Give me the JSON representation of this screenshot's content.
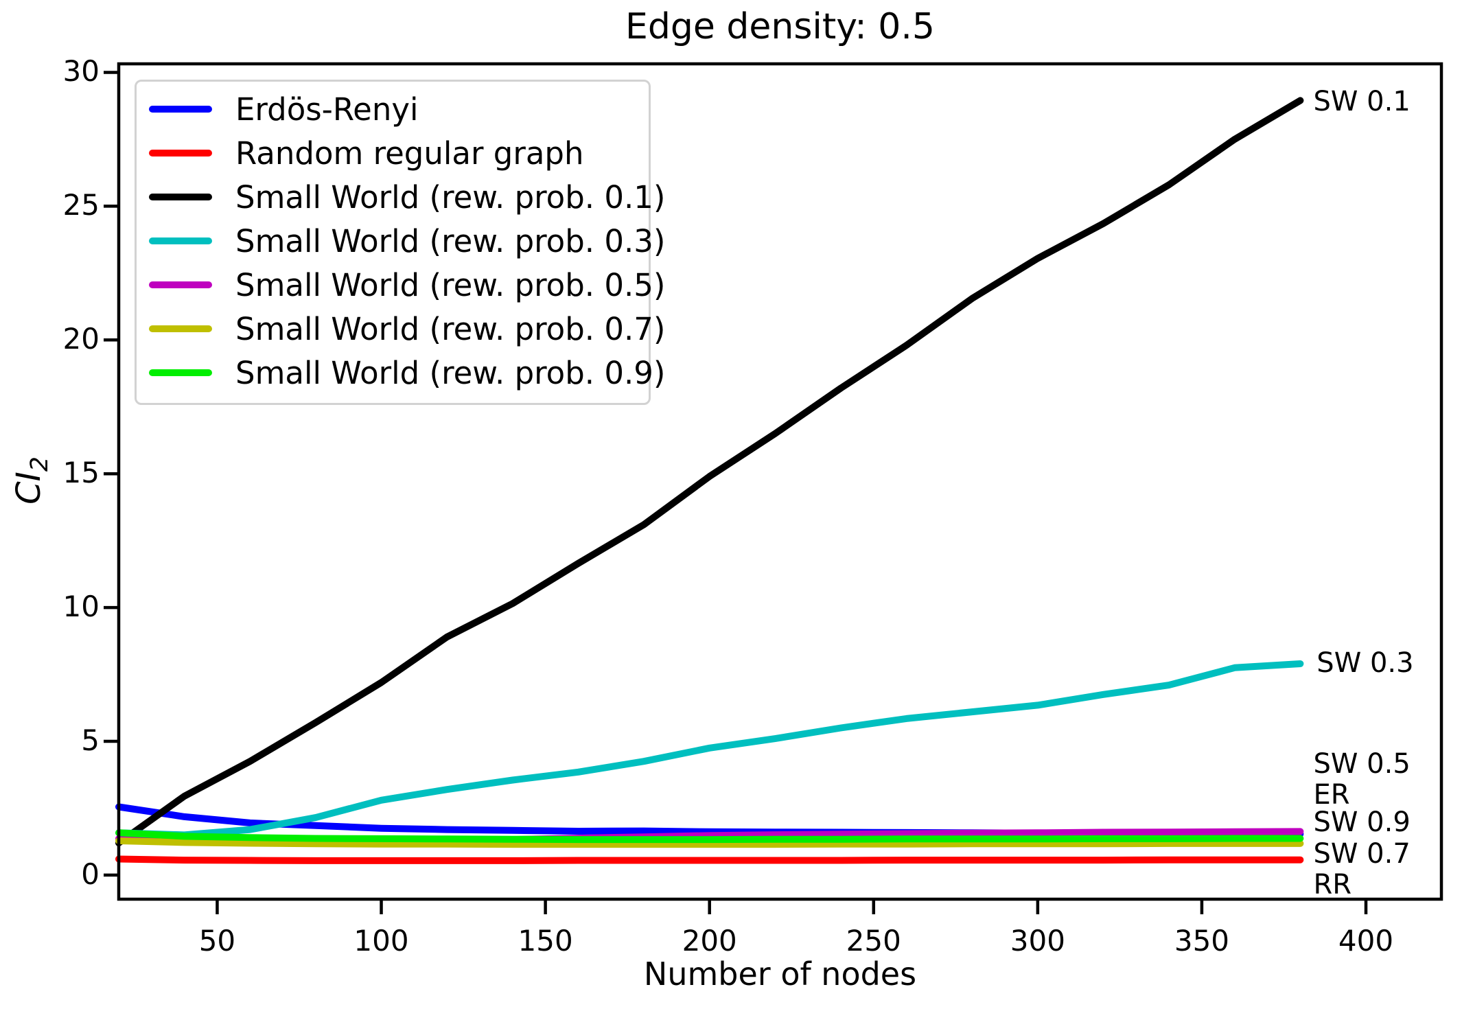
{
  "figure": {
    "title": "Edge density: 0.5",
    "xlabel": "Number of nodes",
    "ylabel_main": "CI",
    "ylabel_sub": "2"
  },
  "chart_data": {
    "type": "line",
    "title": "Edge density: 0.5",
    "xlabel": "Number of nodes",
    "ylabel": "CI_2",
    "grid": false,
    "legend_position": "upper left",
    "xlim": [
      20,
      423
    ],
    "ylim": [
      -0.9,
      30.32
    ],
    "xticks": [
      50,
      100,
      150,
      200,
      250,
      300,
      350,
      400
    ],
    "yticks": [
      0,
      5,
      10,
      15,
      20,
      25,
      30
    ],
    "x": [
      20,
      40,
      60,
      80,
      100,
      120,
      140,
      160,
      180,
      200,
      220,
      240,
      260,
      280,
      300,
      320,
      340,
      360,
      380
    ],
    "series": [
      {
        "name": "Erdös-Renyi",
        "short_label": "ER",
        "color": "#0000ff",
        "values": [
          2.55,
          2.18,
          1.95,
          1.85,
          1.75,
          1.7,
          1.67,
          1.64,
          1.65,
          1.62,
          1.61,
          1.6,
          1.59,
          1.58,
          1.57,
          1.57,
          1.56,
          1.55,
          1.54
        ]
      },
      {
        "name": "Random regular graph",
        "short_label": "RR",
        "color": "#ff0000",
        "values": [
          0.6,
          0.56,
          0.55,
          0.54,
          0.54,
          0.54,
          0.54,
          0.55,
          0.55,
          0.55,
          0.55,
          0.55,
          0.56,
          0.56,
          0.56,
          0.56,
          0.57,
          0.57,
          0.57
        ]
      },
      {
        "name": "Small World (rew. prob. 0.1)",
        "short_label": "SW 0.1",
        "color": "#000000",
        "values": [
          1.2,
          2.95,
          4.25,
          5.7,
          7.2,
          8.9,
          10.15,
          11.65,
          13.1,
          14.9,
          16.5,
          18.2,
          19.8,
          21.55,
          23.05,
          24.35,
          25.8,
          27.5,
          28.95
        ]
      },
      {
        "name": "Small World (rew. prob. 0.3)",
        "short_label": "SW 0.3",
        "color": "#00bfbf",
        "values": [
          1.58,
          1.5,
          1.7,
          2.15,
          2.8,
          3.2,
          3.55,
          3.85,
          4.25,
          4.75,
          5.1,
          5.5,
          5.85,
          6.1,
          6.35,
          6.75,
          7.1,
          7.75,
          7.9
        ]
      },
      {
        "name": "Small World (rew. prob. 0.5)",
        "short_label": "SW 0.5",
        "color": "#bf00bf",
        "values": [
          1.36,
          1.28,
          1.25,
          1.24,
          1.26,
          1.29,
          1.33,
          1.38,
          1.43,
          1.48,
          1.51,
          1.53,
          1.55,
          1.57,
          1.58,
          1.6,
          1.61,
          1.62,
          1.63
        ]
      },
      {
        "name": "Small World (rew. prob. 0.7)",
        "short_label": "SW 0.7",
        "color": "#bfbf00",
        "values": [
          1.28,
          1.22,
          1.19,
          1.17,
          1.16,
          1.16,
          1.15,
          1.15,
          1.15,
          1.15,
          1.15,
          1.16,
          1.16,
          1.17,
          1.17,
          1.17,
          1.18,
          1.18,
          1.18
        ]
      },
      {
        "name": "Small World (rew. prob. 0.9)",
        "short_label": "SW 0.9",
        "color": "#00ee00",
        "values": [
          1.58,
          1.45,
          1.4,
          1.37,
          1.36,
          1.35,
          1.34,
          1.33,
          1.33,
          1.33,
          1.34,
          1.34,
          1.35,
          1.35,
          1.35,
          1.36,
          1.36,
          1.37,
          1.37
        ]
      }
    ],
    "annotations": [
      {
        "text": "SW 0.1",
        "x": 384,
        "y": 28.9
      },
      {
        "text": "SW 0.3",
        "x": 385,
        "y": 7.92
      },
      {
        "text": "SW 0.5",
        "x": 384,
        "y": 4.15
      },
      {
        "text": "ER",
        "x": 384,
        "y": 3.0
      },
      {
        "text": "SW 0.9",
        "x": 384,
        "y": 1.97
      },
      {
        "text": "SW 0.7",
        "x": 384,
        "y": 0.79
      },
      {
        "text": "RR",
        "x": 384,
        "y": -0.36
      }
    ]
  }
}
